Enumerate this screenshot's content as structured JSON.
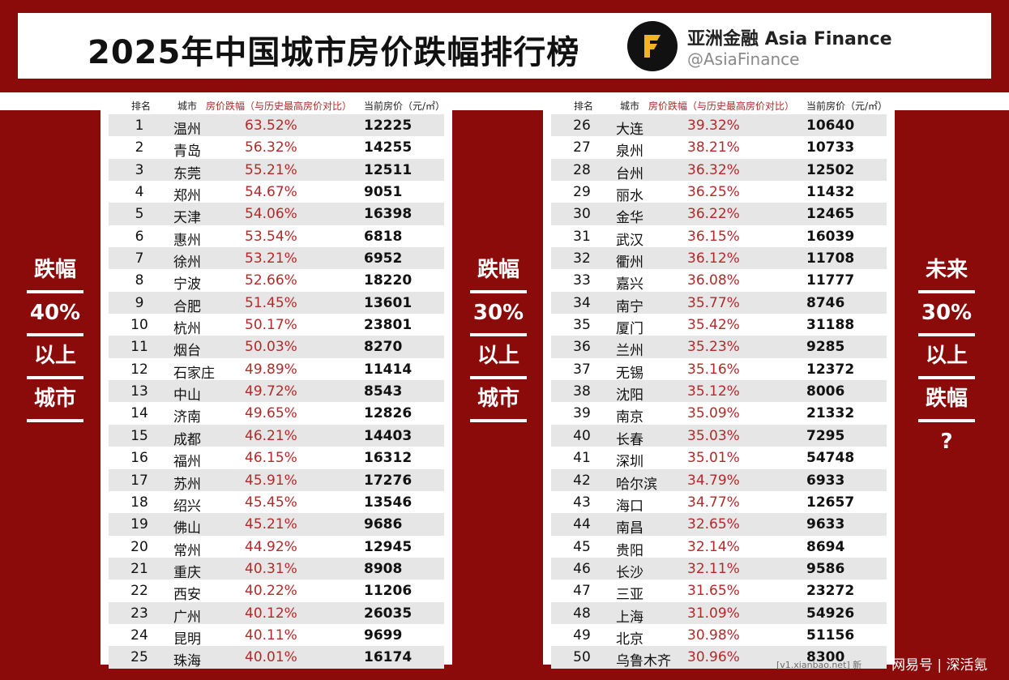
{
  "header": {
    "title": "2025年中国城市房价跌幅排行榜",
    "brand_name": "亚洲金融 Asia Finance",
    "brand_handle": "@AsiaFinance",
    "logo_letter": "F"
  },
  "table_header": {
    "rank": "排名",
    "city": "城市",
    "change": "房价跌幅（与历史最高房价对比）",
    "price": "当前房价（元/㎡）"
  },
  "left_rows": [
    {
      "rank": "1",
      "city": "温州",
      "change": "63.52%",
      "price": "12225"
    },
    {
      "rank": "2",
      "city": "青岛",
      "change": "56.32%",
      "price": "14255"
    },
    {
      "rank": "3",
      "city": "东莞",
      "change": "55.21%",
      "price": "12511"
    },
    {
      "rank": "4",
      "city": "郑州",
      "change": "54.67%",
      "price": "9051"
    },
    {
      "rank": "5",
      "city": "天津",
      "change": "54.06%",
      "price": "16398"
    },
    {
      "rank": "6",
      "city": "惠州",
      "change": "53.54%",
      "price": "6818"
    },
    {
      "rank": "7",
      "city": "徐州",
      "change": "53.21%",
      "price": "6952"
    },
    {
      "rank": "8",
      "city": "宁波",
      "change": "52.66%",
      "price": "18220"
    },
    {
      "rank": "9",
      "city": "合肥",
      "change": "51.45%",
      "price": "13601"
    },
    {
      "rank": "10",
      "city": "杭州",
      "change": "50.17%",
      "price": "23801"
    },
    {
      "rank": "11",
      "city": "烟台",
      "change": "50.03%",
      "price": "8270"
    },
    {
      "rank": "12",
      "city": "石家庄",
      "change": "49.89%",
      "price": "11414"
    },
    {
      "rank": "13",
      "city": "中山",
      "change": "49.72%",
      "price": "8543"
    },
    {
      "rank": "14",
      "city": "济南",
      "change": "49.65%",
      "price": "12826"
    },
    {
      "rank": "15",
      "city": "成都",
      "change": "46.21%",
      "price": "14403"
    },
    {
      "rank": "16",
      "city": "福州",
      "change": "46.15%",
      "price": "16312"
    },
    {
      "rank": "17",
      "city": "苏州",
      "change": "45.91%",
      "price": "17276"
    },
    {
      "rank": "18",
      "city": "绍兴",
      "change": "45.45%",
      "price": "13546"
    },
    {
      "rank": "19",
      "city": "佛山",
      "change": "45.21%",
      "price": "9686"
    },
    {
      "rank": "20",
      "city": "常州",
      "change": "44.92%",
      "price": "12945"
    },
    {
      "rank": "21",
      "city": "重庆",
      "change": "40.31%",
      "price": "8908"
    },
    {
      "rank": "22",
      "city": "西安",
      "change": "40.22%",
      "price": "11206"
    },
    {
      "rank": "23",
      "city": "广州",
      "change": "40.12%",
      "price": "26035"
    },
    {
      "rank": "24",
      "city": "昆明",
      "change": "40.11%",
      "price": "9699"
    },
    {
      "rank": "25",
      "city": "珠海",
      "change": "40.01%",
      "price": "16174"
    }
  ],
  "right_rows": [
    {
      "rank": "26",
      "city": "大连",
      "change": "39.32%",
      "price": "10640"
    },
    {
      "rank": "27",
      "city": "泉州",
      "change": "38.21%",
      "price": "10733"
    },
    {
      "rank": "28",
      "city": "台州",
      "change": "36.32%",
      "price": "12502"
    },
    {
      "rank": "29",
      "city": "丽水",
      "change": "36.25%",
      "price": "11432"
    },
    {
      "rank": "30",
      "city": "金华",
      "change": "36.22%",
      "price": "12465"
    },
    {
      "rank": "31",
      "city": "武汉",
      "change": "36.15%",
      "price": "16039"
    },
    {
      "rank": "32",
      "city": "衢州",
      "change": "36.12%",
      "price": "11708"
    },
    {
      "rank": "33",
      "city": "嘉兴",
      "change": "36.08%",
      "price": "11777"
    },
    {
      "rank": "34",
      "city": "南宁",
      "change": "35.77%",
      "price": "8746"
    },
    {
      "rank": "35",
      "city": "厦门",
      "change": "35.42%",
      "price": "31188"
    },
    {
      "rank": "36",
      "city": "兰州",
      "change": "35.23%",
      "price": "9285"
    },
    {
      "rank": "37",
      "city": "无锡",
      "change": "35.16%",
      "price": "12372"
    },
    {
      "rank": "38",
      "city": "沈阳",
      "change": "35.12%",
      "price": "8006"
    },
    {
      "rank": "39",
      "city": "南京",
      "change": "35.09%",
      "price": "21332"
    },
    {
      "rank": "40",
      "city": "长春",
      "change": "35.03%",
      "price": "7295"
    },
    {
      "rank": "41",
      "city": "深圳",
      "change": "35.01%",
      "price": "54748"
    },
    {
      "rank": "42",
      "city": "哈尔滨",
      "change": "34.79%",
      "price": "6933"
    },
    {
      "rank": "43",
      "city": "海口",
      "change": "34.77%",
      "price": "12657"
    },
    {
      "rank": "44",
      "city": "南昌",
      "change": "32.65%",
      "price": "9633"
    },
    {
      "rank": "45",
      "city": "贵阳",
      "change": "32.14%",
      "price": "8694"
    },
    {
      "rank": "46",
      "city": "长沙",
      "change": "32.11%",
      "price": "9586"
    },
    {
      "rank": "47",
      "city": "三亚",
      "change": "31.65%",
      "price": "23272"
    },
    {
      "rank": "48",
      "city": "上海",
      "change": "31.09%",
      "price": "54926"
    },
    {
      "rank": "49",
      "city": "北京",
      "change": "30.98%",
      "price": "51156"
    },
    {
      "rank": "50",
      "city": "乌鲁木齐",
      "change": "30.96%",
      "price": "8300"
    }
  ],
  "side_left": [
    "跌幅",
    "40%",
    "以上",
    "城市"
  ],
  "side_middle": [
    "跌幅",
    "30%",
    "以上",
    "城市"
  ],
  "side_right": [
    "未来",
    "30%",
    "以上",
    "跌幅",
    "?"
  ],
  "footer": {
    "source_note": "[v1.xianbao.net] 新",
    "watermark": "网易号 | 深活氪"
  }
}
